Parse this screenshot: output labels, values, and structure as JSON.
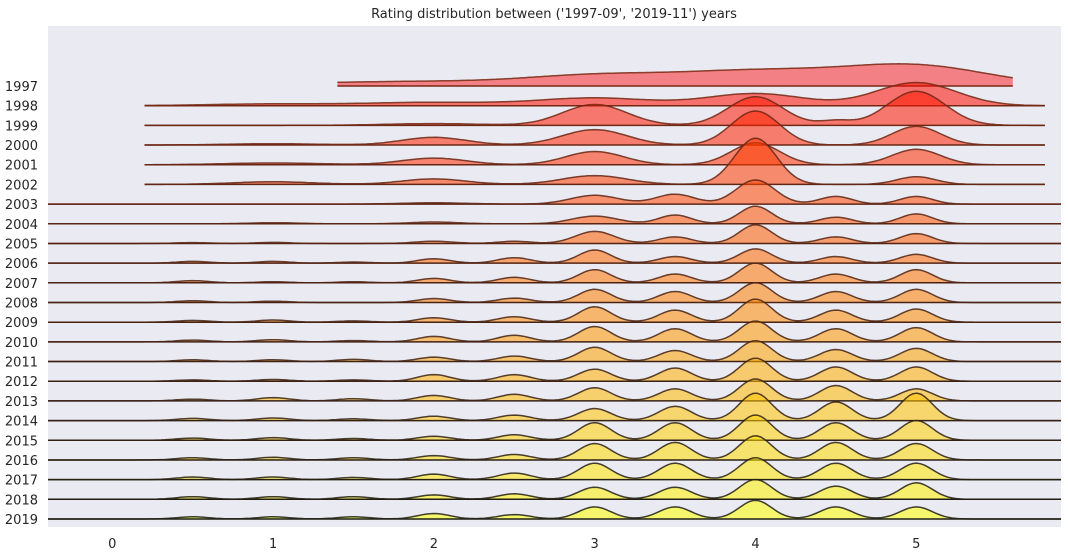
{
  "chart_data": {
    "type": "ridgeline",
    "title": "Rating distribution between ('1997-09', '2019-11') years",
    "xlabel": "",
    "ylabel": "",
    "xlim": [
      -0.4,
      5.9
    ],
    "x_ticks": [
      0,
      1,
      2,
      3,
      4,
      5
    ],
    "grid": false,
    "background": "#eaeaf2",
    "colormap": "autumn",
    "series": [
      {
        "name": "1997",
        "x_range": [
          1.4,
          5.6
        ],
        "peaks": [
          [
            1.2,
            0.1,
            0.6
          ],
          [
            2.0,
            0.15,
            0.5
          ],
          [
            3.0,
            0.45,
            0.45
          ],
          [
            4.0,
            0.65,
            0.5
          ],
          [
            5.0,
            0.9,
            0.45
          ]
        ]
      },
      {
        "name": "1998",
        "x_range": [
          0.2,
          5.8
        ],
        "peaks": [
          [
            1.0,
            0.08,
            0.4
          ],
          [
            2.0,
            0.15,
            0.4
          ],
          [
            3.0,
            0.35,
            0.35
          ],
          [
            4.0,
            0.55,
            0.3
          ],
          [
            5.0,
            1.05,
            0.25
          ]
        ]
      },
      {
        "name": "1999",
        "x_range": [
          0.2,
          5.8
        ],
        "peaks": [
          [
            2.0,
            0.08,
            0.3
          ],
          [
            3.0,
            0.95,
            0.2
          ],
          [
            4.0,
            1.3,
            0.17
          ],
          [
            4.5,
            0.2,
            0.1
          ],
          [
            5.0,
            1.55,
            0.18
          ]
        ]
      },
      {
        "name": "2000",
        "x_range": [
          0.2,
          5.8
        ],
        "peaks": [
          [
            1.0,
            0.06,
            0.3
          ],
          [
            2.0,
            0.35,
            0.2
          ],
          [
            3.0,
            0.7,
            0.2
          ],
          [
            4.0,
            1.55,
            0.15
          ],
          [
            5.0,
            0.85,
            0.15
          ]
        ]
      },
      {
        "name": "2001",
        "x_range": [
          0.2,
          5.8
        ],
        "peaks": [
          [
            1.0,
            0.08,
            0.3
          ],
          [
            2.0,
            0.3,
            0.2
          ],
          [
            3.0,
            0.6,
            0.18
          ],
          [
            4.0,
            1.0,
            0.15
          ],
          [
            5.0,
            0.7,
            0.15
          ]
        ]
      },
      {
        "name": "2002",
        "x_range": [
          0.2,
          5.8
        ],
        "peaks": [
          [
            1.0,
            0.12,
            0.25
          ],
          [
            2.0,
            0.25,
            0.2
          ],
          [
            3.0,
            0.4,
            0.2
          ],
          [
            4.0,
            2.1,
            0.13
          ],
          [
            5.0,
            0.35,
            0.12
          ]
        ]
      },
      {
        "name": "2003",
        "x_range": [
          -0.4,
          5.9
        ],
        "peaks": [
          [
            2.0,
            0.06,
            0.2
          ],
          [
            3.0,
            0.4,
            0.15
          ],
          [
            3.5,
            0.45,
            0.12
          ],
          [
            4.0,
            1.1,
            0.12
          ],
          [
            4.5,
            0.35,
            0.1
          ],
          [
            5.0,
            0.35,
            0.1
          ]
        ]
      },
      {
        "name": "2004",
        "x_range": [
          -0.4,
          5.9
        ],
        "peaks": [
          [
            1.0,
            0.05,
            0.15
          ],
          [
            2.0,
            0.08,
            0.15
          ],
          [
            3.0,
            0.35,
            0.14
          ],
          [
            3.5,
            0.4,
            0.1
          ],
          [
            4.0,
            0.8,
            0.1
          ],
          [
            4.5,
            0.3,
            0.1
          ],
          [
            5.0,
            0.45,
            0.1
          ]
        ]
      },
      {
        "name": "2005",
        "x_range": [
          -0.4,
          5.9
        ],
        "peaks": [
          [
            0.5,
            0.04,
            0.1
          ],
          [
            1.0,
            0.05,
            0.1
          ],
          [
            2.0,
            0.1,
            0.12
          ],
          [
            2.5,
            0.1,
            0.1
          ],
          [
            3.0,
            0.55,
            0.12
          ],
          [
            3.5,
            0.3,
            0.1
          ],
          [
            4.0,
            0.85,
            0.1
          ],
          [
            4.5,
            0.3,
            0.1
          ],
          [
            5.0,
            0.45,
            0.1
          ]
        ]
      },
      {
        "name": "2006",
        "x_range": [
          -0.4,
          5.9
        ],
        "peaks": [
          [
            0.5,
            0.08,
            0.1
          ],
          [
            1.0,
            0.08,
            0.1
          ],
          [
            1.5,
            0.05,
            0.1
          ],
          [
            2.0,
            0.2,
            0.1
          ],
          [
            2.5,
            0.25,
            0.1
          ],
          [
            3.0,
            0.6,
            0.1
          ],
          [
            3.5,
            0.3,
            0.1
          ],
          [
            4.0,
            0.65,
            0.1
          ],
          [
            4.5,
            0.3,
            0.1
          ],
          [
            5.0,
            0.4,
            0.1
          ]
        ]
      },
      {
        "name": "2007",
        "x_range": [
          -0.4,
          5.9
        ],
        "peaks": [
          [
            0.5,
            0.1,
            0.1
          ],
          [
            1.0,
            0.05,
            0.1
          ],
          [
            1.5,
            0.05,
            0.1
          ],
          [
            2.0,
            0.2,
            0.1
          ],
          [
            2.5,
            0.25,
            0.1
          ],
          [
            3.0,
            0.6,
            0.1
          ],
          [
            3.5,
            0.4,
            0.1
          ],
          [
            4.0,
            0.9,
            0.1
          ],
          [
            4.5,
            0.4,
            0.1
          ],
          [
            5.0,
            0.6,
            0.1
          ]
        ]
      },
      {
        "name": "2008",
        "x_range": [
          -0.4,
          5.9
        ],
        "peaks": [
          [
            0.5,
            0.08,
            0.1
          ],
          [
            1.0,
            0.06,
            0.1
          ],
          [
            2.0,
            0.18,
            0.1
          ],
          [
            2.5,
            0.2,
            0.1
          ],
          [
            3.0,
            0.6,
            0.1
          ],
          [
            3.5,
            0.5,
            0.1
          ],
          [
            4.0,
            0.9,
            0.1
          ],
          [
            4.5,
            0.5,
            0.1
          ],
          [
            5.0,
            0.6,
            0.1
          ]
        ]
      },
      {
        "name": "2009",
        "x_range": [
          -0.4,
          5.9
        ],
        "peaks": [
          [
            0.5,
            0.08,
            0.1
          ],
          [
            1.0,
            0.1,
            0.1
          ],
          [
            1.5,
            0.06,
            0.1
          ],
          [
            2.0,
            0.2,
            0.1
          ],
          [
            2.5,
            0.25,
            0.1
          ],
          [
            3.0,
            0.7,
            0.1
          ],
          [
            3.5,
            0.55,
            0.1
          ],
          [
            4.0,
            1.05,
            0.1
          ],
          [
            4.5,
            0.55,
            0.1
          ],
          [
            5.0,
            0.6,
            0.1
          ]
        ]
      },
      {
        "name": "2010",
        "x_range": [
          -0.4,
          5.9
        ],
        "peaks": [
          [
            0.5,
            0.08,
            0.1
          ],
          [
            1.0,
            0.1,
            0.1
          ],
          [
            1.5,
            0.06,
            0.1
          ],
          [
            2.0,
            0.25,
            0.1
          ],
          [
            2.5,
            0.3,
            0.1
          ],
          [
            3.0,
            0.7,
            0.1
          ],
          [
            3.5,
            0.6,
            0.1
          ],
          [
            4.0,
            0.95,
            0.1
          ],
          [
            4.5,
            0.6,
            0.1
          ],
          [
            5.0,
            0.65,
            0.1
          ]
        ]
      },
      {
        "name": "2011",
        "x_range": [
          -0.4,
          5.9
        ],
        "peaks": [
          [
            0.5,
            0.08,
            0.1
          ],
          [
            1.0,
            0.08,
            0.1
          ],
          [
            1.5,
            0.1,
            0.1
          ],
          [
            2.0,
            0.2,
            0.1
          ],
          [
            2.5,
            0.25,
            0.1
          ],
          [
            3.0,
            0.65,
            0.1
          ],
          [
            3.5,
            0.5,
            0.1
          ],
          [
            4.0,
            0.95,
            0.1
          ],
          [
            4.5,
            0.55,
            0.1
          ],
          [
            5.0,
            0.6,
            0.1
          ]
        ]
      },
      {
        "name": "2012",
        "x_range": [
          -0.4,
          5.9
        ],
        "peaks": [
          [
            0.5,
            0.06,
            0.1
          ],
          [
            1.0,
            0.08,
            0.1
          ],
          [
            1.5,
            0.06,
            0.1
          ],
          [
            2.0,
            0.3,
            0.1
          ],
          [
            2.5,
            0.3,
            0.1
          ],
          [
            3.0,
            0.55,
            0.1
          ],
          [
            3.5,
            0.6,
            0.1
          ],
          [
            4.0,
            1.05,
            0.1
          ],
          [
            4.5,
            0.65,
            0.1
          ],
          [
            5.0,
            0.65,
            0.1
          ]
        ]
      },
      {
        "name": "2013",
        "x_range": [
          -0.4,
          5.9
        ],
        "peaks": [
          [
            0.5,
            0.08,
            0.1
          ],
          [
            1.0,
            0.15,
            0.1
          ],
          [
            1.5,
            0.1,
            0.1
          ],
          [
            2.0,
            0.25,
            0.1
          ],
          [
            2.5,
            0.3,
            0.1
          ],
          [
            3.0,
            0.6,
            0.1
          ],
          [
            3.5,
            0.55,
            0.1
          ],
          [
            4.0,
            1.0,
            0.1
          ],
          [
            4.5,
            0.7,
            0.1
          ],
          [
            5.0,
            0.55,
            0.1
          ]
        ]
      },
      {
        "name": "2014",
        "x_range": [
          -0.4,
          5.9
        ],
        "peaks": [
          [
            0.5,
            0.1,
            0.1
          ],
          [
            1.0,
            0.12,
            0.1
          ],
          [
            1.5,
            0.08,
            0.1
          ],
          [
            2.0,
            0.2,
            0.1
          ],
          [
            2.5,
            0.25,
            0.1
          ],
          [
            3.0,
            0.55,
            0.1
          ],
          [
            3.5,
            0.65,
            0.1
          ],
          [
            4.0,
            1.25,
            0.1
          ],
          [
            4.5,
            0.85,
            0.1
          ],
          [
            5.0,
            1.25,
            0.1
          ]
        ]
      },
      {
        "name": "2015",
        "x_range": [
          -0.4,
          5.9
        ],
        "peaks": [
          [
            0.5,
            0.1,
            0.1
          ],
          [
            1.0,
            0.12,
            0.1
          ],
          [
            1.5,
            0.08,
            0.1
          ],
          [
            2.0,
            0.18,
            0.1
          ],
          [
            2.5,
            0.25,
            0.1
          ],
          [
            3.0,
            0.8,
            0.1
          ],
          [
            3.5,
            0.8,
            0.1
          ],
          [
            4.0,
            1.15,
            0.1
          ],
          [
            4.5,
            0.8,
            0.1
          ],
          [
            5.0,
            0.9,
            0.1
          ]
        ]
      },
      {
        "name": "2016",
        "x_range": [
          -0.4,
          5.9
        ],
        "peaks": [
          [
            0.5,
            0.1,
            0.1
          ],
          [
            1.0,
            0.12,
            0.1
          ],
          [
            1.5,
            0.1,
            0.1
          ],
          [
            2.0,
            0.2,
            0.1
          ],
          [
            2.5,
            0.25,
            0.1
          ],
          [
            3.0,
            0.75,
            0.1
          ],
          [
            3.5,
            0.8,
            0.1
          ],
          [
            4.0,
            1.1,
            0.1
          ],
          [
            4.5,
            0.8,
            0.1
          ],
          [
            5.0,
            0.75,
            0.1
          ]
        ]
      },
      {
        "name": "2017",
        "x_range": [
          -0.4,
          5.9
        ],
        "peaks": [
          [
            0.5,
            0.12,
            0.1
          ],
          [
            1.0,
            0.12,
            0.1
          ],
          [
            1.5,
            0.1,
            0.1
          ],
          [
            2.0,
            0.25,
            0.1
          ],
          [
            2.5,
            0.3,
            0.1
          ],
          [
            3.0,
            0.75,
            0.1
          ],
          [
            3.5,
            0.75,
            0.1
          ],
          [
            4.0,
            1.0,
            0.1
          ],
          [
            4.5,
            0.75,
            0.1
          ],
          [
            5.0,
            0.75,
            0.1
          ]
        ]
      },
      {
        "name": "2018",
        "x_range": [
          -0.4,
          5.9
        ],
        "peaks": [
          [
            0.5,
            0.12,
            0.1
          ],
          [
            1.0,
            0.12,
            0.1
          ],
          [
            1.5,
            0.12,
            0.1
          ],
          [
            2.0,
            0.2,
            0.1
          ],
          [
            2.5,
            0.25,
            0.1
          ],
          [
            3.0,
            0.55,
            0.1
          ],
          [
            3.5,
            0.55,
            0.1
          ],
          [
            4.0,
            0.9,
            0.1
          ],
          [
            4.5,
            0.6,
            0.1
          ],
          [
            5.0,
            0.75,
            0.1
          ]
        ]
      },
      {
        "name": "2019",
        "x_range": [
          -0.4,
          5.9
        ],
        "peaks": [
          [
            0.5,
            0.1,
            0.1
          ],
          [
            1.0,
            0.1,
            0.1
          ],
          [
            1.5,
            0.1,
            0.1
          ],
          [
            2.0,
            0.25,
            0.1
          ],
          [
            2.5,
            0.2,
            0.1
          ],
          [
            3.0,
            0.55,
            0.1
          ],
          [
            3.5,
            0.55,
            0.1
          ],
          [
            4.0,
            0.85,
            0.1
          ],
          [
            4.5,
            0.55,
            0.1
          ],
          [
            5.0,
            0.55,
            0.1
          ]
        ]
      }
    ]
  }
}
